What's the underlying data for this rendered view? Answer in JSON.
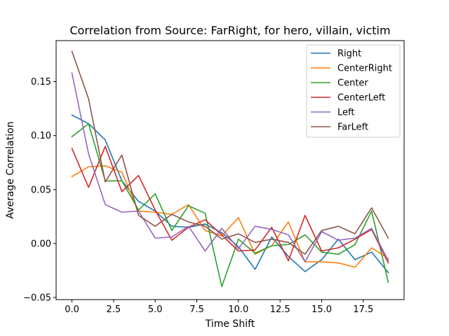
{
  "chart_data": {
    "type": "line",
    "title": "Correlation from Source: FarRight, for hero, villain, victim",
    "xlabel": "Time Shift",
    "ylabel": "Average Correlation",
    "xlim": [
      -0.95,
      19.95
    ],
    "ylim": [
      -0.052,
      0.188
    ],
    "xticks": [
      0.0,
      2.5,
      5.0,
      7.5,
      10.0,
      12.5,
      15.0,
      17.5
    ],
    "xtick_labels": [
      "0.0",
      "2.5",
      "5.0",
      "7.5",
      "10.0",
      "12.5",
      "15.0",
      "17.5"
    ],
    "yticks": [
      -0.05,
      0.0,
      0.05,
      0.1,
      0.15
    ],
    "ytick_labels": [
      "−0.05",
      "0.00",
      "0.05",
      "0.10",
      "0.15"
    ],
    "grid": false,
    "legend_position": "top-right",
    "x": [
      0,
      1,
      2,
      3,
      4,
      5,
      6,
      7,
      8,
      9,
      10,
      11,
      12,
      13,
      14,
      15,
      16,
      17,
      18,
      19
    ],
    "series": [
      {
        "name": "Right",
        "color": "#1f77b4",
        "values": [
          0.119,
          0.111,
          0.096,
          0.058,
          0.039,
          0.03,
          0.016,
          0.015,
          0.018,
          0.01,
          -0.003,
          -0.024,
          0.006,
          -0.012,
          -0.026,
          -0.015,
          0.004,
          -0.015,
          -0.008,
          -0.027
        ]
      },
      {
        "name": "CenterRight",
        "color": "#ff7f0e",
        "values": [
          0.062,
          0.071,
          0.072,
          0.066,
          0.03,
          0.029,
          0.027,
          0.036,
          0.012,
          0.007,
          0.024,
          -0.01,
          -0.002,
          0.02,
          -0.017,
          -0.017,
          -0.018,
          -0.022,
          -0.004,
          -0.014
        ]
      },
      {
        "name": "Center",
        "color": "#2ca02c",
        "values": [
          0.099,
          0.111,
          0.058,
          0.058,
          0.031,
          0.046,
          0.012,
          0.035,
          0.028,
          -0.04,
          0.004,
          -0.009,
          -0.002,
          -0.001,
          0.008,
          -0.008,
          -0.01,
          -0.001,
          0.03,
          -0.036
        ]
      },
      {
        "name": "CenterLeft",
        "color": "#d62728",
        "values": [
          0.088,
          0.052,
          0.09,
          0.048,
          0.063,
          0.031,
          0.003,
          0.015,
          0.022,
          0.008,
          -0.007,
          -0.006,
          0.015,
          -0.016,
          0.026,
          -0.007,
          -0.004,
          0.004,
          0.013,
          -0.018
        ]
      },
      {
        "name": "Left",
        "color": "#9467bd",
        "values": [
          0.158,
          0.083,
          0.036,
          0.029,
          0.03,
          0.005,
          0.006,
          0.016,
          -0.007,
          0.014,
          -0.005,
          0.016,
          0.013,
          0.008,
          -0.017,
          0.011,
          0.003,
          0.005,
          0.014,
          -0.016
        ]
      },
      {
        "name": "FarLeft",
        "color": "#8c564b",
        "values": [
          0.178,
          0.134,
          0.057,
          0.082,
          0.026,
          0.016,
          0.027,
          0.02,
          0.016,
          0.004,
          0.009,
          0.001,
          0.004,
          0.001,
          -0.01,
          0.012,
          0.016,
          0.009,
          0.033,
          0.005
        ]
      }
    ]
  }
}
